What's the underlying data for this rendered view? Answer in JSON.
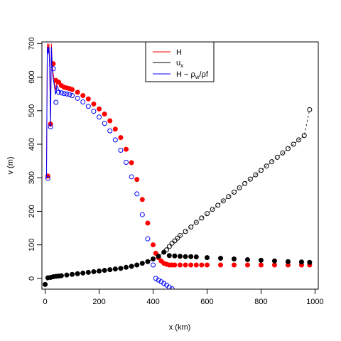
{
  "chart_data": {
    "type": "scatter",
    "title": "",
    "xlabel": "x (km)",
    "ylabel": "v (m)",
    "xlim": [
      -12,
      1012
    ],
    "ylim": [
      -32,
      705
    ],
    "x_ticks": [
      "0",
      "200",
      "400",
      "600",
      "800",
      "1000"
    ],
    "x_tick_values": [
      0,
      200,
      400,
      600,
      800,
      1000
    ],
    "y_ticks": [
      "0",
      "100",
      "200",
      "300",
      "400",
      "500",
      "600",
      "700"
    ],
    "y_tick_values": [
      0,
      100,
      200,
      300,
      400,
      500,
      600,
      700
    ],
    "grid": false,
    "legend": {
      "placement": "top-center",
      "entries": [
        {
          "label": "H",
          "color": "#ff0000"
        },
        {
          "label": "u",
          "subscript": "x",
          "color": "#000000"
        },
        {
          "label": "H − ρ",
          "subscript": "w",
          "suffix": "/ρf",
          "color": "#0000ff"
        }
      ]
    },
    "series": [
      {
        "name": "H",
        "color": "#ff0000",
        "marker": "filled-circle",
        "spike_line": {
          "x": [
            5,
            8,
            11,
            14,
            17,
            20,
            23,
            26,
            29,
            32,
            35,
            38,
            41,
            44,
            47,
            50,
            54,
            58
          ],
          "y": [
            305,
            700,
            680,
            700,
            640,
            460,
            700,
            645,
            615,
            600,
            580,
            560,
            575,
            590,
            585,
            580,
            578,
            577
          ]
        },
        "x": [
          10,
          20,
          30,
          40,
          50,
          60,
          70,
          80,
          90,
          100,
          120,
          140,
          160,
          180,
          200,
          220,
          240,
          260,
          280,
          300,
          320,
          340,
          360,
          380,
          400,
          410,
          420,
          430,
          440,
          450,
          460,
          470,
          480,
          500,
          520,
          540,
          560,
          580,
          600,
          650,
          700,
          750,
          800,
          850,
          900,
          950,
          980
        ],
        "y": [
          305,
          460,
          640,
          590,
          585,
          575,
          570,
          568,
          566,
          563,
          555,
          545,
          535,
          520,
          505,
          490,
          470,
          445,
          420,
          385,
          345,
          295,
          235,
          165,
          100,
          75,
          62,
          52,
          45,
          42,
          40,
          40,
          40,
          40,
          40,
          40,
          40,
          40,
          40,
          40,
          40,
          40,
          40,
          40,
          40,
          40,
          40
        ]
      },
      {
        "name": "u_x",
        "color": "#000000",
        "marker": "mixed-circle",
        "x": [
          0,
          10,
          20,
          30,
          40,
          50,
          60,
          80,
          100,
          120,
          140,
          160,
          180,
          200,
          220,
          240,
          260,
          280,
          300,
          320,
          340,
          360,
          380,
          400,
          420,
          440,
          450,
          460,
          470,
          480,
          490,
          500,
          520,
          540,
          560,
          580,
          600,
          620,
          640,
          660,
          680,
          700,
          720,
          740,
          760,
          780,
          800,
          820,
          840,
          860,
          880,
          900,
          920,
          940,
          960,
          980
        ],
        "y": [
          -18,
          2,
          3,
          5,
          6,
          7,
          8,
          10,
          12,
          14,
          16,
          18,
          20,
          22,
          24,
          26,
          28,
          30,
          33,
          36,
          40,
          45,
          50,
          58,
          66,
          78,
          85,
          95,
          105,
          112,
          120,
          128,
          140,
          153,
          167,
          180,
          193,
          206,
          218,
          231,
          244,
          257,
          270,
          283,
          296,
          309,
          322,
          335,
          348,
          361,
          374,
          387,
          400,
          413,
          426,
          503
        ]
      },
      {
        "name": "u_x (filled)",
        "color": "#000000",
        "marker": "filled-circle",
        "x": [
          460,
          480,
          500,
          520,
          540,
          560,
          600,
          650,
          700,
          750,
          800,
          850,
          900,
          950,
          980
        ],
        "y": [
          68,
          67,
          66,
          65,
          65,
          64,
          62,
          60,
          58,
          56,
          54,
          52,
          50,
          49,
          48
        ]
      },
      {
        "name": "H − ρw/ρf",
        "color": "#0000ff",
        "marker": "open-circle",
        "spike_line": {
          "x": [
            5,
            8,
            11,
            14,
            17,
            20,
            23,
            26,
            29,
            32,
            35,
            38,
            41,
            44,
            47,
            50,
            54,
            58
          ],
          "y": [
            298,
            690,
            670,
            690,
            620,
            452,
            690,
            625,
            600,
            585,
            570,
            548,
            560,
            575,
            570,
            560,
            557,
            555
          ]
        },
        "x": [
          10,
          20,
          30,
          40,
          50,
          60,
          70,
          80,
          90,
          100,
          120,
          140,
          160,
          180,
          200,
          220,
          240,
          260,
          280,
          300,
          320,
          340,
          360,
          380,
          400,
          410,
          420,
          430,
          440,
          450,
          460,
          470
        ],
        "y": [
          298,
          452,
          625,
          525,
          555,
          553,
          551,
          550,
          548,
          545,
          537,
          526,
          513,
          498,
          481,
          462,
          440,
          413,
          382,
          346,
          303,
          252,
          190,
          118,
          40,
          0,
          -5,
          -10,
          -15,
          -20,
          -26,
          -31
        ]
      }
    ]
  }
}
